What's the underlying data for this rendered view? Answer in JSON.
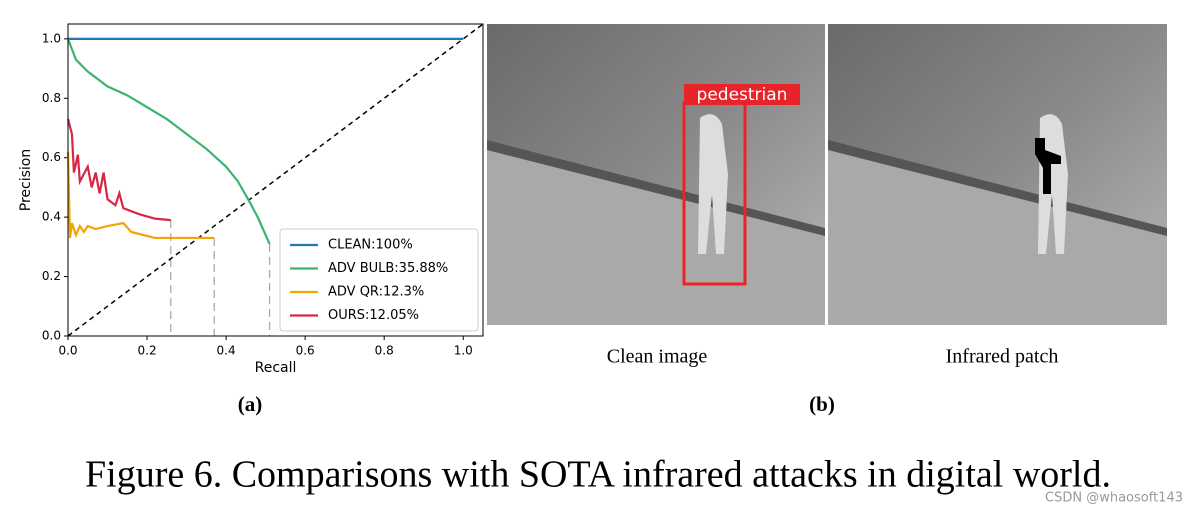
{
  "chart_data": {
    "type": "line",
    "xlabel": "Recall",
    "ylabel": "Precision",
    "xlim": [
      0,
      1.05
    ],
    "ylim": [
      0,
      1.05
    ],
    "xticks": [
      {
        "value": 0,
        "label": "0.0"
      },
      {
        "value": 0.2,
        "label": "0.2"
      },
      {
        "value": 0.4,
        "label": "0.4"
      },
      {
        "value": 0.6,
        "label": "0.6"
      },
      {
        "value": 0.8,
        "label": "0.8"
      },
      {
        "value": 1,
        "label": "1.0"
      }
    ],
    "yticks": [
      {
        "value": 0,
        "label": "0.0"
      },
      {
        "value": 0.2,
        "label": "0.2"
      },
      {
        "value": 0.4,
        "label": "0.4"
      },
      {
        "value": 0.6,
        "label": "0.6"
      },
      {
        "value": 0.8,
        "label": "0.8"
      },
      {
        "value": 1,
        "label": "1.0"
      }
    ],
    "legend": "lower right",
    "reference_line": {
      "color": "#000000",
      "x": [
        0,
        1.05
      ],
      "values": [
        0,
        1.05
      ]
    },
    "series": [
      {
        "name": "CLEAN:100%",
        "color": "#1f77b4",
        "x": [
          0,
          1
        ],
        "values": [
          1,
          1
        ]
      },
      {
        "name": "ADV BULB:35.88%",
        "color": "#3cb371",
        "x": [
          0,
          0.02,
          0.05,
          0.1,
          0.15,
          0.2,
          0.25,
          0.3,
          0.35,
          0.4,
          0.43,
          0.46,
          0.48,
          0.5,
          0.51
        ],
        "values": [
          1.0,
          0.93,
          0.89,
          0.84,
          0.81,
          0.77,
          0.73,
          0.68,
          0.63,
          0.57,
          0.52,
          0.45,
          0.4,
          0.34,
          0.31
        ]
      },
      {
        "name": "ADV QR:12.3%",
        "color": "#f5a300",
        "x": [
          0,
          0.005,
          0.01,
          0.02,
          0.03,
          0.04,
          0.05,
          0.07,
          0.1,
          0.14,
          0.16,
          0.19,
          0.22,
          0.3,
          0.37
        ],
        "values": [
          0.62,
          0.33,
          0.38,
          0.34,
          0.37,
          0.35,
          0.37,
          0.36,
          0.37,
          0.38,
          0.35,
          0.34,
          0.33,
          0.33,
          0.33
        ]
      },
      {
        "name": "OURS:12.05%",
        "color": "#d62748",
        "x": [
          0,
          0.01,
          0.015,
          0.025,
          0.03,
          0.05,
          0.06,
          0.07,
          0.08,
          0.09,
          0.1,
          0.12,
          0.13,
          0.14,
          0.18,
          0.22,
          0.26
        ],
        "values": [
          0.73,
          0.68,
          0.55,
          0.61,
          0.52,
          0.57,
          0.5,
          0.55,
          0.48,
          0.55,
          0.46,
          0.44,
          0.48,
          0.43,
          0.41,
          0.395,
          0.39
        ]
      }
    ]
  },
  "images": {
    "detection_label": "pedestrian",
    "left_caption": "Clean image",
    "right_caption": "Infrared patch"
  },
  "panels": {
    "a": "(a)",
    "b": "(b)"
  },
  "caption": "Figure 6. Comparisons with SOTA infrared attacks in digital world.",
  "watermark": "CSDN @whaosoft143"
}
